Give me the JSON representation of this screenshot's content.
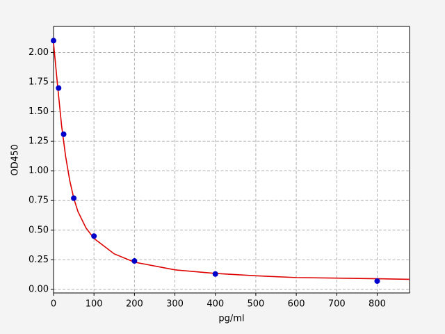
{
  "chart_data": {
    "type": "scatter",
    "xlabel": "pg/ml",
    "ylabel": "OD450",
    "xlim": [
      0,
      880
    ],
    "ylim": [
      -0.03,
      2.22
    ],
    "xticks": [
      0,
      100,
      200,
      300,
      400,
      500,
      600,
      700,
      800
    ],
    "yticks": [
      {
        "value": 0,
        "label": "0.00"
      },
      {
        "value": 0.25,
        "label": "0.25"
      },
      {
        "value": 0.5,
        "label": "0.50"
      },
      {
        "value": 0.75,
        "label": "0.75"
      },
      {
        "value": 1,
        "label": "1.00"
      },
      {
        "value": 1.25,
        "label": "1.25"
      },
      {
        "value": 1.5,
        "label": "1.50"
      },
      {
        "value": 1.75,
        "label": "1.75"
      },
      {
        "value": 2,
        "label": "2.00"
      }
    ],
    "grid": true,
    "series": [
      {
        "type": "line",
        "color": "#dd0000",
        "x": [
          0,
          10,
          20,
          30,
          40,
          50,
          60,
          80,
          100,
          150,
          200,
          300,
          400,
          500,
          600,
          700,
          800,
          880
        ],
        "values": [
          2.08,
          1.72,
          1.38,
          1.12,
          0.92,
          0.77,
          0.66,
          0.52,
          0.43,
          0.3,
          0.23,
          0.165,
          0.135,
          0.115,
          0.1,
          0.095,
          0.09,
          0.085
        ]
      },
      {
        "type": "scatter",
        "color": "#0000cc",
        "x": [
          0,
          12.5,
          25,
          50,
          100,
          200,
          400,
          800
        ],
        "values": [
          2.1,
          1.7,
          1.31,
          0.77,
          0.45,
          0.24,
          0.13,
          0.07
        ]
      }
    ]
  }
}
